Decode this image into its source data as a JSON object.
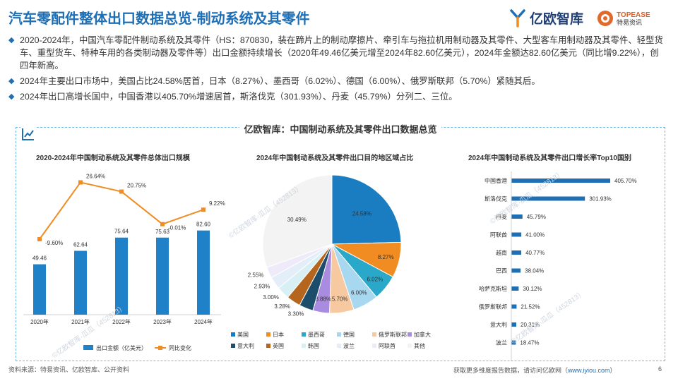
{
  "header": {
    "title": "汽车零配件整体出口数据总览-制动系统及其零件",
    "logo_yiou": "亿欧智库",
    "logo_topease": "TOPEASE",
    "logo_topease_sub": "特易资讯"
  },
  "bullets": [
    "2020-2024年，中国汽车零配件制动系统及其零件（HS：870830，装在蹄片上的制动摩擦片、牵引车与拖拉机用制动器及其零件、大型客车用制动器及其零件、轻型货车、重型货车、特种车用的各类制动器及零件等）出口金额持续增长（2020年49.46亿美元增至2024年82.60亿美元），2024年金额达82.60亿美元（同比增9.22%），创四年新高。",
    "2024年主要出口市场中，美国占比24.58%居首，日本（8.27%）、墨西哥（6.02%）、德国（6.00%）、俄罗斯联邦（5.70%）紧随其后。",
    "2024年出口高增长国中，中国香港以405.70%增速居首，斯洛伐克（301.93%）、丹麦（45.79%）分列二、三位。"
  ],
  "panel": {
    "title": "亿欧智库：中国制动系统及其零件出口数据总览"
  },
  "watermark": "©亿欧智库-瓜瓜（452813）",
  "colors": {
    "accent": "#1f6fb5",
    "bar": "#1f82c9",
    "line": "#f08c22",
    "hbar": "#1f6fb5"
  },
  "chart_data": [
    {
      "type": "bar",
      "title": "2020-2024年中国制动系统及其零件总体出口规模",
      "categories": [
        "2020年",
        "2021年",
        "2022年",
        "2023年",
        "2024年"
      ],
      "series": [
        {
          "name": "出口金额（亿美元）",
          "type": "bar",
          "values": [
            49.46,
            62.64,
            75.64,
            75.63,
            82.6
          ],
          "labels": [
            "49.46",
            "62.64",
            "75.64",
            "75.63",
            "82.60"
          ]
        },
        {
          "name": "同比变化",
          "type": "line",
          "values": [
            -9.6,
            26.64,
            20.75,
            -0.01,
            9.22
          ],
          "labels": [
            "-9.60%",
            "26.64%",
            "20.75%",
            "-0.01%",
            "9.22%"
          ]
        }
      ]
    },
    {
      "type": "pie",
      "title": "2024年中国制动系统及其零件出口目的地区域占比",
      "legend": [
        "美国",
        "日本",
        "墨西哥",
        "德国",
        "俄罗斯联邦",
        "加拿大",
        "意大利",
        "英国",
        "韩国",
        "波兰",
        "阿联酋",
        "其他"
      ],
      "values": [
        24.58,
        8.27,
        6.02,
        6.0,
        5.7,
        3.88,
        3.3,
        3.28,
        3.0,
        2.93,
        2.55,
        30.49
      ],
      "labels": [
        "24.58%",
        "8.27%",
        "6.02%",
        "6.00%",
        "5.70%",
        "3.88%",
        "3.30%",
        "3.28%",
        "3.00%",
        "2.93%",
        "2.55%",
        "30.49%"
      ],
      "colors": [
        "#1a7cc1",
        "#f08c22",
        "#2aa8c9",
        "#a8d8f0",
        "#f7c9a0",
        "#a98be0",
        "#1c4d6b",
        "#b5651d",
        "#d8f0f4",
        "#e4eef9",
        "#efeafa",
        "#f3f3f3"
      ]
    },
    {
      "type": "bar",
      "orientation": "horizontal",
      "title": "2024年中国制动系统及其零件出口增长率Top10国别",
      "categories": [
        "中国香港",
        "斯洛伐克",
        "丹麦",
        "阿联酋",
        "越南",
        "巴西",
        "哈萨克斯坦",
        "俄罗斯联邦",
        "意大利",
        "波兰"
      ],
      "values": [
        405.7,
        301.93,
        45.79,
        41.0,
        40.77,
        38.04,
        30.12,
        21.52,
        20.31,
        18.47
      ],
      "labels": [
        "405.70%",
        "301.93%",
        "45.79%",
        "41.00%",
        "40.77%",
        "38.04%",
        "30.12%",
        "21.52%",
        "20.31%",
        "18.47%"
      ]
    }
  ],
  "footer": {
    "source": "资料来源：特易资讯、亿欧智库、公开资料",
    "more": "获取更多维度报告数据，请访问亿欧网（",
    "url": "www.iyiou.com",
    "close": "）",
    "page": "6"
  }
}
